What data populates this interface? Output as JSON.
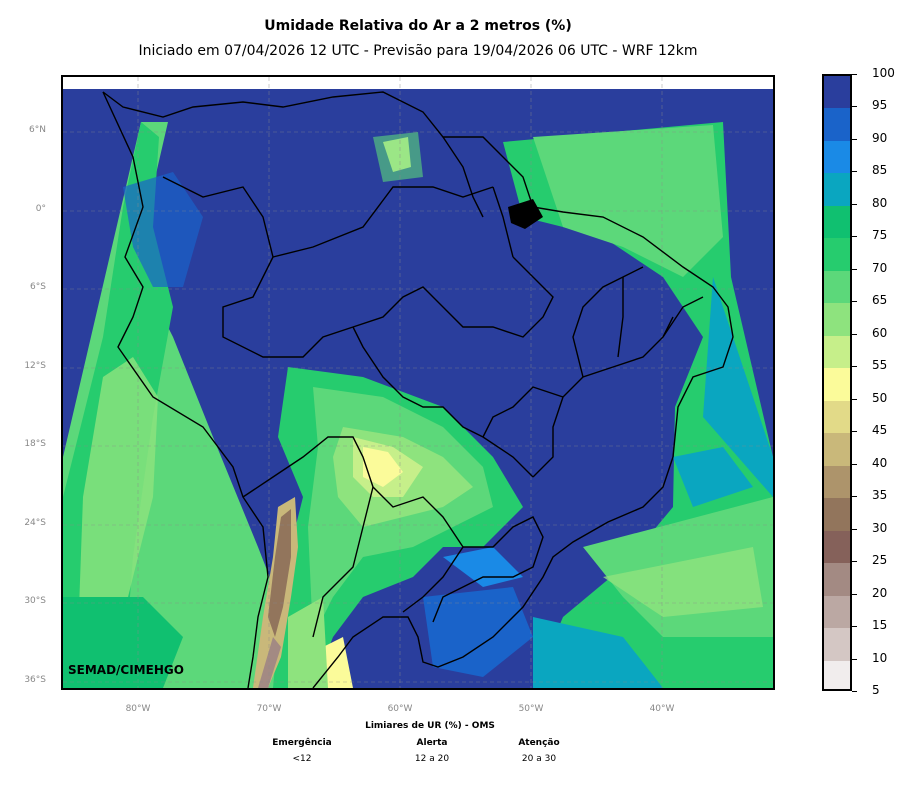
{
  "title": "Umidade Relativa do Ar a 2 metros (%)",
  "subtitle": "Iniciado em 07/04/2026 12 UTC - Previsão para 19/04/2026 06 UTC - WRF 12km",
  "credit": "SEMAD/CIMEHGO",
  "map": {
    "region": "South America (Brazil focus)",
    "lat_labels": [
      "6°N",
      "0°",
      "6°S",
      "12°S",
      "18°S",
      "24°S",
      "30°S",
      "36°S"
    ],
    "lon_labels": [
      "80°W",
      "70°W",
      "60°W",
      "50°W",
      "40°W"
    ]
  },
  "colorbar": {
    "labels": [
      "100",
      "95",
      "90",
      "85",
      "80",
      "75",
      "70",
      "65",
      "60",
      "55",
      "50",
      "45",
      "40",
      "35",
      "30",
      "25",
      "20",
      "15",
      "10",
      "5"
    ],
    "colors": [
      "#2a3e9d",
      "#1a63c9",
      "#1a8ae6",
      "#0aa6c0",
      "#10c070",
      "#26cc6e",
      "#5cd87a",
      "#8ee37e",
      "#c6ef8a",
      "#fbfb9a",
      "#e2da88",
      "#c9b87a",
      "#ad946b",
      "#92755c",
      "#85615a",
      "#a38a83",
      "#bba8a3",
      "#d4c7c4",
      "#f1eded"
    ]
  },
  "thresholds": {
    "title": "Limiares de UR (%) - OMS",
    "columns": [
      {
        "label": "Emergência",
        "value": "<12"
      },
      {
        "label": "Alerta",
        "value": "12 a 20"
      },
      {
        "label": "Atenção",
        "value": "20 a 30"
      }
    ]
  }
}
